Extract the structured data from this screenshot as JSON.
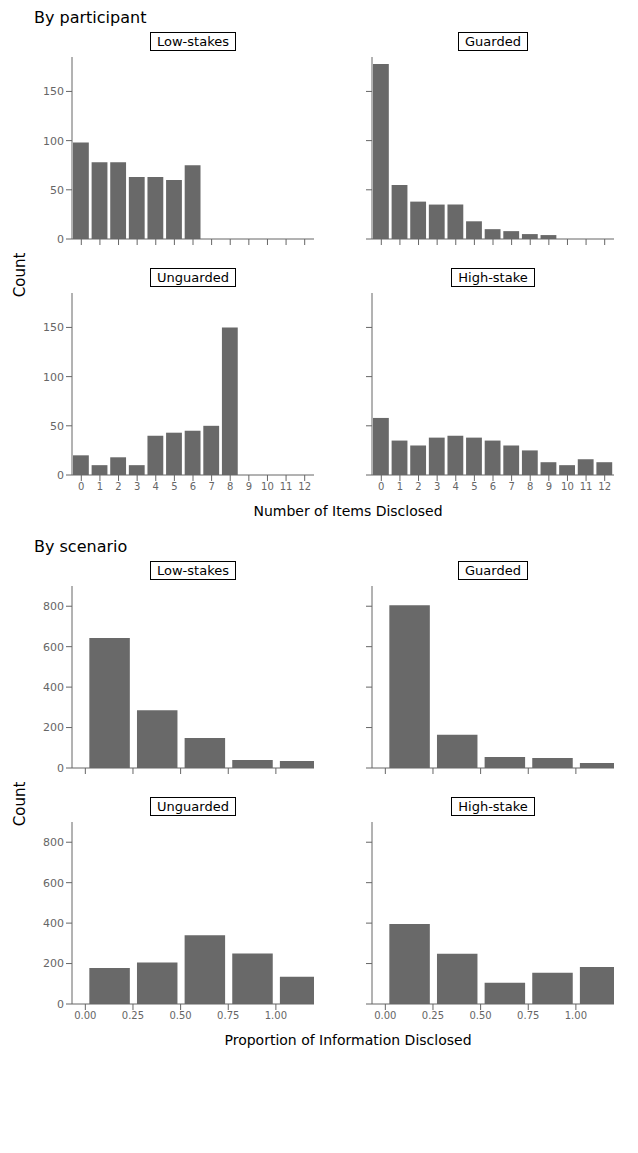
{
  "chart_data": [
    {
      "type": "bar",
      "title": "By participant",
      "xlabel": "Number of Items Disclosed",
      "ylabel": "Count",
      "x": [
        0,
        1,
        2,
        3,
        4,
        5,
        6,
        7,
        8,
        9,
        10,
        11,
        12
      ],
      "xlim": [
        -0.5,
        12.5
      ],
      "xticks": [
        0,
        1,
        2,
        3,
        4,
        5,
        6,
        7,
        8,
        9,
        10,
        11,
        12
      ],
      "ylim": [
        0,
        185
      ],
      "yticks": [
        0,
        50,
        100,
        150
      ],
      "color": "#696969",
      "grid": false,
      "series": [
        {
          "name": "Low-stakes",
          "values": [
            98,
            78,
            78,
            63,
            63,
            60,
            75,
            0,
            0,
            0,
            0,
            0,
            0
          ]
        },
        {
          "name": "Guarded",
          "values": [
            178,
            55,
            38,
            35,
            35,
            18,
            10,
            8,
            5,
            4,
            0,
            0,
            0
          ]
        },
        {
          "name": "Unguarded",
          "values": [
            20,
            10,
            18,
            10,
            40,
            43,
            45,
            50,
            150,
            0,
            0,
            0,
            0
          ]
        },
        {
          "name": "High-stake",
          "values": [
            58,
            35,
            30,
            38,
            40,
            38,
            35,
            30,
            25,
            13,
            10,
            16,
            13
          ]
        }
      ]
    },
    {
      "type": "bar",
      "title": "By scenario",
      "xlabel": "Proportion of Information Disclosed",
      "ylabel": "Count",
      "x": [
        0.125,
        0.375,
        0.625,
        0.875,
        1.125
      ],
      "xlim": [
        -0.07,
        1.2
      ],
      "xticks": [
        {
          "value": 0,
          "label": "0.00"
        },
        {
          "value": 0.25,
          "label": "0.25"
        },
        {
          "value": 0.5,
          "label": "0.50"
        },
        {
          "value": 0.75,
          "label": "0.75"
        },
        {
          "value": 1,
          "label": "1.00"
        }
      ],
      "ylim": [
        0,
        900
      ],
      "yticks": [
        0,
        200,
        400,
        600,
        800
      ],
      "color": "#696969",
      "grid": false,
      "series": [
        {
          "name": "Low-stakes",
          "values": [
            643,
            285,
            148,
            40,
            35
          ]
        },
        {
          "name": "Guarded",
          "values": [
            805,
            165,
            55,
            50,
            25
          ]
        },
        {
          "name": "Unguarded",
          "values": [
            178,
            205,
            340,
            250,
            135
          ]
        },
        {
          "name": "High-stake",
          "values": [
            395,
            248,
            105,
            155,
            183
          ]
        }
      ]
    }
  ]
}
